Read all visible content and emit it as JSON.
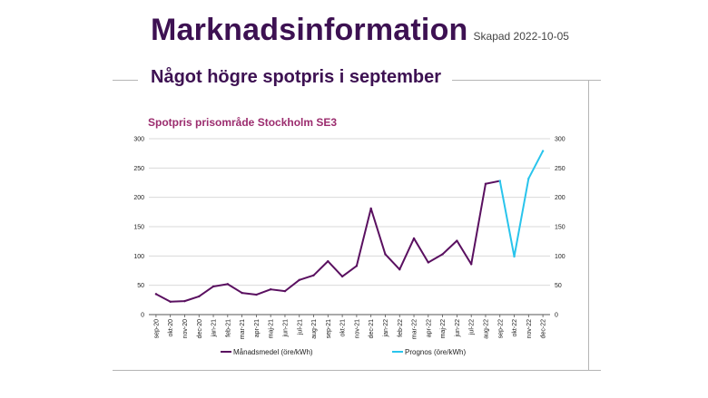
{
  "header": {
    "title": "Marknadsinformation",
    "created": "Skapad 2022-10-05",
    "subtitle": "Något högre spotpris i september"
  },
  "colors": {
    "brand": "#3d1152",
    "chart_title": "#9b2c6e",
    "actual": "#5a1060",
    "forecast": "#29c4ec"
  },
  "chart_data": {
    "type": "line",
    "title": "Spotpris prisområde Stockholm SE3",
    "categories": [
      "sep-20",
      "okt-20",
      "nov-20",
      "dec-20",
      "jan-21",
      "feb-21",
      "mar-21",
      "apr-21",
      "maj-21",
      "jun-21",
      "jul-21",
      "aug-21",
      "sep-21",
      "okt-21",
      "nov-21",
      "dec-21",
      "jan-22",
      "feb-22",
      "mar-22",
      "apr-22",
      "maj-22",
      "jun-22",
      "jul-22",
      "aug-22",
      "sep-22",
      "okt-22",
      "nov-22",
      "dec-22"
    ],
    "yticks": [
      "0",
      "50",
      "100",
      "150",
      "200",
      "250",
      "300"
    ],
    "ylim": [
      0,
      300
    ],
    "grid": true,
    "legend": "bottom",
    "series": [
      {
        "name": "Månadsmedel (öre/kWh)",
        "color": "#5a1060",
        "values": [
          35,
          22,
          23,
          31,
          48,
          52,
          37,
          34,
          43,
          40,
          59,
          67,
          91,
          65,
          83,
          181,
          103,
          77,
          130,
          89,
          103,
          126,
          86,
          223,
          228,
          null,
          null,
          null
        ]
      },
      {
        "name": "Prognos (öre/kWh)",
        "color": "#29c4ec",
        "values": [
          null,
          null,
          null,
          null,
          null,
          null,
          null,
          null,
          null,
          null,
          null,
          null,
          null,
          null,
          null,
          null,
          null,
          null,
          null,
          null,
          null,
          null,
          null,
          null,
          228,
          99,
          232,
          279
        ]
      }
    ]
  }
}
